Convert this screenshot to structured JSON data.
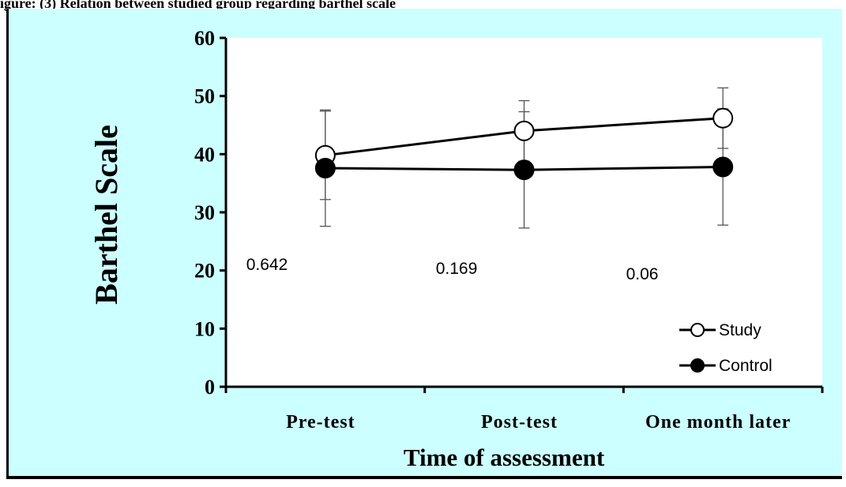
{
  "caption": "igure: (3) Relation between studied group regarding barthel scale",
  "chart_data": {
    "type": "line",
    "xlabel": "Time of assessment",
    "ylabel": "Barthel Scale",
    "ylim": [
      0,
      60
    ],
    "yticks": [
      0,
      10,
      20,
      30,
      40,
      50,
      60
    ],
    "categories": [
      "Pre-test",
      "Post-test",
      "One month later"
    ],
    "series": [
      {
        "name": "Study",
        "marker": "open-circle",
        "values": [
          39.8,
          44.0,
          46.2
        ],
        "error": [
          7.6,
          5.2,
          5.2
        ]
      },
      {
        "name": "Control",
        "marker": "filled-circle",
        "values": [
          37.6,
          37.3,
          37.8
        ],
        "error": [
          10.0,
          10.0,
          10.0
        ]
      }
    ],
    "annotations": [
      "0.642",
      "0.169",
      "0.06"
    ],
    "grid": false,
    "legend_position": "bottom-right"
  },
  "colors": {
    "panel_background": "#ccffff",
    "plot_background": "#ffffff",
    "line": "#000000",
    "study_marker_fill": "#ffffff",
    "control_marker_fill": "#000000"
  }
}
